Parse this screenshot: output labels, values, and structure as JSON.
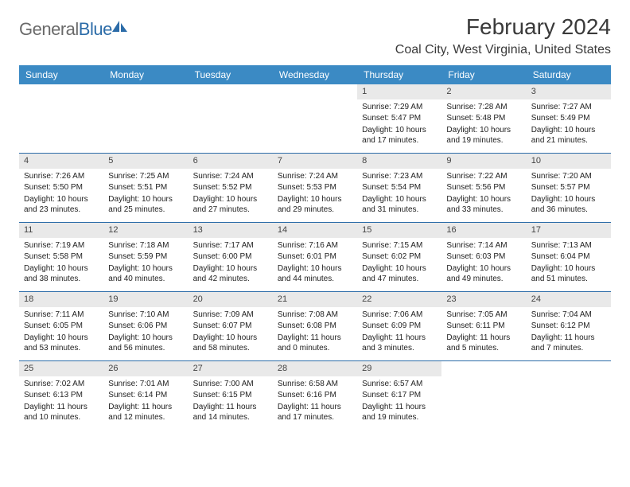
{
  "brand": {
    "part1": "General",
    "part2": "Blue"
  },
  "colors": {
    "header_bg": "#3b8ac4",
    "header_text": "#ffffff",
    "rule": "#2c6ca8",
    "daynum_bg": "#e9e9e9",
    "text": "#222222",
    "brand_gray": "#6a6a6a",
    "brand_blue": "#2c6ca8"
  },
  "title": "February 2024",
  "location": "Coal City, West Virginia, United States",
  "day_names": [
    "Sunday",
    "Monday",
    "Tuesday",
    "Wednesday",
    "Thursday",
    "Friday",
    "Saturday"
  ],
  "weeks": [
    [
      {
        "empty": true
      },
      {
        "empty": true
      },
      {
        "empty": true
      },
      {
        "empty": true
      },
      {
        "day": "1",
        "sunrise": "Sunrise: 7:29 AM",
        "sunset": "Sunset: 5:47 PM",
        "daylight": "Daylight: 10 hours and 17 minutes."
      },
      {
        "day": "2",
        "sunrise": "Sunrise: 7:28 AM",
        "sunset": "Sunset: 5:48 PM",
        "daylight": "Daylight: 10 hours and 19 minutes."
      },
      {
        "day": "3",
        "sunrise": "Sunrise: 7:27 AM",
        "sunset": "Sunset: 5:49 PM",
        "daylight": "Daylight: 10 hours and 21 minutes."
      }
    ],
    [
      {
        "day": "4",
        "sunrise": "Sunrise: 7:26 AM",
        "sunset": "Sunset: 5:50 PM",
        "daylight": "Daylight: 10 hours and 23 minutes."
      },
      {
        "day": "5",
        "sunrise": "Sunrise: 7:25 AM",
        "sunset": "Sunset: 5:51 PM",
        "daylight": "Daylight: 10 hours and 25 minutes."
      },
      {
        "day": "6",
        "sunrise": "Sunrise: 7:24 AM",
        "sunset": "Sunset: 5:52 PM",
        "daylight": "Daylight: 10 hours and 27 minutes."
      },
      {
        "day": "7",
        "sunrise": "Sunrise: 7:24 AM",
        "sunset": "Sunset: 5:53 PM",
        "daylight": "Daylight: 10 hours and 29 minutes."
      },
      {
        "day": "8",
        "sunrise": "Sunrise: 7:23 AM",
        "sunset": "Sunset: 5:54 PM",
        "daylight": "Daylight: 10 hours and 31 minutes."
      },
      {
        "day": "9",
        "sunrise": "Sunrise: 7:22 AM",
        "sunset": "Sunset: 5:56 PM",
        "daylight": "Daylight: 10 hours and 33 minutes."
      },
      {
        "day": "10",
        "sunrise": "Sunrise: 7:20 AM",
        "sunset": "Sunset: 5:57 PM",
        "daylight": "Daylight: 10 hours and 36 minutes."
      }
    ],
    [
      {
        "day": "11",
        "sunrise": "Sunrise: 7:19 AM",
        "sunset": "Sunset: 5:58 PM",
        "daylight": "Daylight: 10 hours and 38 minutes."
      },
      {
        "day": "12",
        "sunrise": "Sunrise: 7:18 AM",
        "sunset": "Sunset: 5:59 PM",
        "daylight": "Daylight: 10 hours and 40 minutes."
      },
      {
        "day": "13",
        "sunrise": "Sunrise: 7:17 AM",
        "sunset": "Sunset: 6:00 PM",
        "daylight": "Daylight: 10 hours and 42 minutes."
      },
      {
        "day": "14",
        "sunrise": "Sunrise: 7:16 AM",
        "sunset": "Sunset: 6:01 PM",
        "daylight": "Daylight: 10 hours and 44 minutes."
      },
      {
        "day": "15",
        "sunrise": "Sunrise: 7:15 AM",
        "sunset": "Sunset: 6:02 PM",
        "daylight": "Daylight: 10 hours and 47 minutes."
      },
      {
        "day": "16",
        "sunrise": "Sunrise: 7:14 AM",
        "sunset": "Sunset: 6:03 PM",
        "daylight": "Daylight: 10 hours and 49 minutes."
      },
      {
        "day": "17",
        "sunrise": "Sunrise: 7:13 AM",
        "sunset": "Sunset: 6:04 PM",
        "daylight": "Daylight: 10 hours and 51 minutes."
      }
    ],
    [
      {
        "day": "18",
        "sunrise": "Sunrise: 7:11 AM",
        "sunset": "Sunset: 6:05 PM",
        "daylight": "Daylight: 10 hours and 53 minutes."
      },
      {
        "day": "19",
        "sunrise": "Sunrise: 7:10 AM",
        "sunset": "Sunset: 6:06 PM",
        "daylight": "Daylight: 10 hours and 56 minutes."
      },
      {
        "day": "20",
        "sunrise": "Sunrise: 7:09 AM",
        "sunset": "Sunset: 6:07 PM",
        "daylight": "Daylight: 10 hours and 58 minutes."
      },
      {
        "day": "21",
        "sunrise": "Sunrise: 7:08 AM",
        "sunset": "Sunset: 6:08 PM",
        "daylight": "Daylight: 11 hours and 0 minutes."
      },
      {
        "day": "22",
        "sunrise": "Sunrise: 7:06 AM",
        "sunset": "Sunset: 6:09 PM",
        "daylight": "Daylight: 11 hours and 3 minutes."
      },
      {
        "day": "23",
        "sunrise": "Sunrise: 7:05 AM",
        "sunset": "Sunset: 6:11 PM",
        "daylight": "Daylight: 11 hours and 5 minutes."
      },
      {
        "day": "24",
        "sunrise": "Sunrise: 7:04 AM",
        "sunset": "Sunset: 6:12 PM",
        "daylight": "Daylight: 11 hours and 7 minutes."
      }
    ],
    [
      {
        "day": "25",
        "sunrise": "Sunrise: 7:02 AM",
        "sunset": "Sunset: 6:13 PM",
        "daylight": "Daylight: 11 hours and 10 minutes."
      },
      {
        "day": "26",
        "sunrise": "Sunrise: 7:01 AM",
        "sunset": "Sunset: 6:14 PM",
        "daylight": "Daylight: 11 hours and 12 minutes."
      },
      {
        "day": "27",
        "sunrise": "Sunrise: 7:00 AM",
        "sunset": "Sunset: 6:15 PM",
        "daylight": "Daylight: 11 hours and 14 minutes."
      },
      {
        "day": "28",
        "sunrise": "Sunrise: 6:58 AM",
        "sunset": "Sunset: 6:16 PM",
        "daylight": "Daylight: 11 hours and 17 minutes."
      },
      {
        "day": "29",
        "sunrise": "Sunrise: 6:57 AM",
        "sunset": "Sunset: 6:17 PM",
        "daylight": "Daylight: 11 hours and 19 minutes."
      },
      {
        "empty": true
      },
      {
        "empty": true
      }
    ]
  ]
}
